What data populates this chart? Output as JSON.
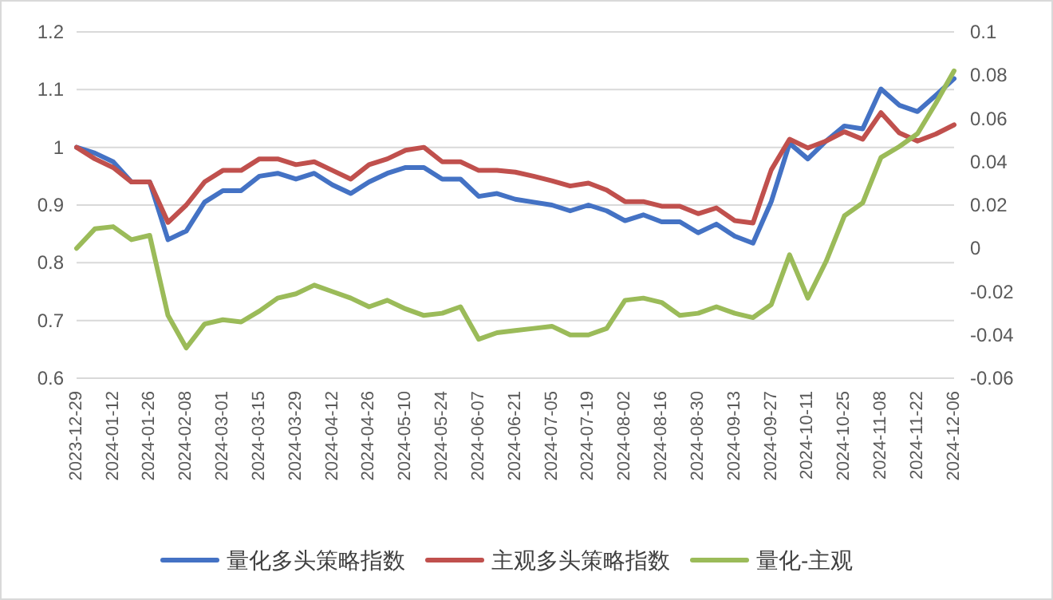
{
  "chart_data": {
    "type": "line",
    "categories": [
      "2023-12-29",
      null,
      "2024-01-12",
      null,
      "2024-01-26",
      null,
      "2024-02-08",
      null,
      "2024-03-01",
      null,
      "2024-03-15",
      null,
      "2024-03-29",
      null,
      "2024-04-12",
      null,
      "2024-04-26",
      null,
      "2024-05-10",
      null,
      "2024-05-24",
      null,
      "2024-06-07",
      null,
      "2024-06-21",
      null,
      "2024-07-05",
      null,
      "2024-07-19",
      null,
      "2024-08-02",
      null,
      "2024-08-16",
      null,
      "2024-08-30",
      null,
      "2024-09-13",
      null,
      "2024-09-27",
      null,
      "2024-10-11",
      null,
      "2024-10-25",
      null,
      "2024-11-08",
      null,
      "2024-11-22",
      null,
      "2024-12-06"
    ],
    "series": [
      {
        "name": "量化多头策略指数",
        "color": "#4472c4",
        "values": [
          1.0,
          0.99,
          0.975,
          0.94,
          0.94,
          0.84,
          0.855,
          0.905,
          0.925,
          0.925,
          0.95,
          0.955,
          0.945,
          0.955,
          0.935,
          0.92,
          0.94,
          0.955,
          0.965,
          0.965,
          0.945,
          0.945,
          0.915,
          0.92,
          0.91,
          0.905,
          0.9,
          0.89,
          0.9,
          0.89,
          0.873,
          0.883,
          0.871,
          0.871,
          0.852,
          0.867,
          0.846,
          0.834,
          0.906,
          1.007,
          0.98,
          1.011,
          1.037,
          1.032,
          1.101,
          1.073,
          1.062,
          1.09,
          1.119
        ]
      },
      {
        "name": "主观多头策略指数",
        "color": "#c0504d",
        "values": [
          1.0,
          0.98,
          0.965,
          0.94,
          0.94,
          0.87,
          0.9,
          0.94,
          0.96,
          0.96,
          0.98,
          0.98,
          0.97,
          0.975,
          0.96,
          0.945,
          0.97,
          0.98,
          0.995,
          1.0,
          0.975,
          0.975,
          0.96,
          0.96,
          0.957,
          0.95,
          0.942,
          0.933,
          0.938,
          0.926,
          0.906,
          0.906,
          0.898,
          0.898,
          0.885,
          0.895,
          0.873,
          0.869,
          0.961,
          1.014,
          0.999,
          1.011,
          1.027,
          1.014,
          1.06,
          1.025,
          1.011,
          1.023,
          1.039
        ]
      },
      {
        "name": "量化-主观",
        "color": "#9bbb59",
        "axis": "y2",
        "values": [
          0.0,
          0.009,
          0.01,
          0.004,
          0.006,
          -0.031,
          -0.046,
          -0.035,
          -0.033,
          -0.034,
          -0.029,
          -0.023,
          -0.021,
          -0.017,
          -0.02,
          -0.023,
          -0.027,
          -0.024,
          -0.028,
          -0.031,
          -0.03,
          -0.027,
          -0.042,
          -0.039,
          -0.038,
          -0.037,
          -0.036,
          -0.04,
          -0.04,
          -0.037,
          -0.024,
          -0.023,
          -0.025,
          -0.031,
          -0.03,
          -0.027,
          -0.03,
          -0.032,
          -0.026,
          -0.003,
          -0.023,
          -0.006,
          0.015,
          0.021,
          0.042,
          0.047,
          0.053,
          0.067,
          0.082
        ]
      }
    ],
    "ylim": [
      0.6,
      1.2
    ],
    "yticks": [
      0.6,
      0.7,
      0.8,
      0.9,
      1,
      1.1,
      1.2
    ],
    "y2lim": [
      -0.06,
      0.1
    ],
    "y2ticks": [
      -0.06,
      -0.04,
      -0.02,
      0,
      0.02,
      0.04,
      0.06,
      0.08,
      0.1
    ],
    "grid": "y",
    "legend": "bottom"
  }
}
